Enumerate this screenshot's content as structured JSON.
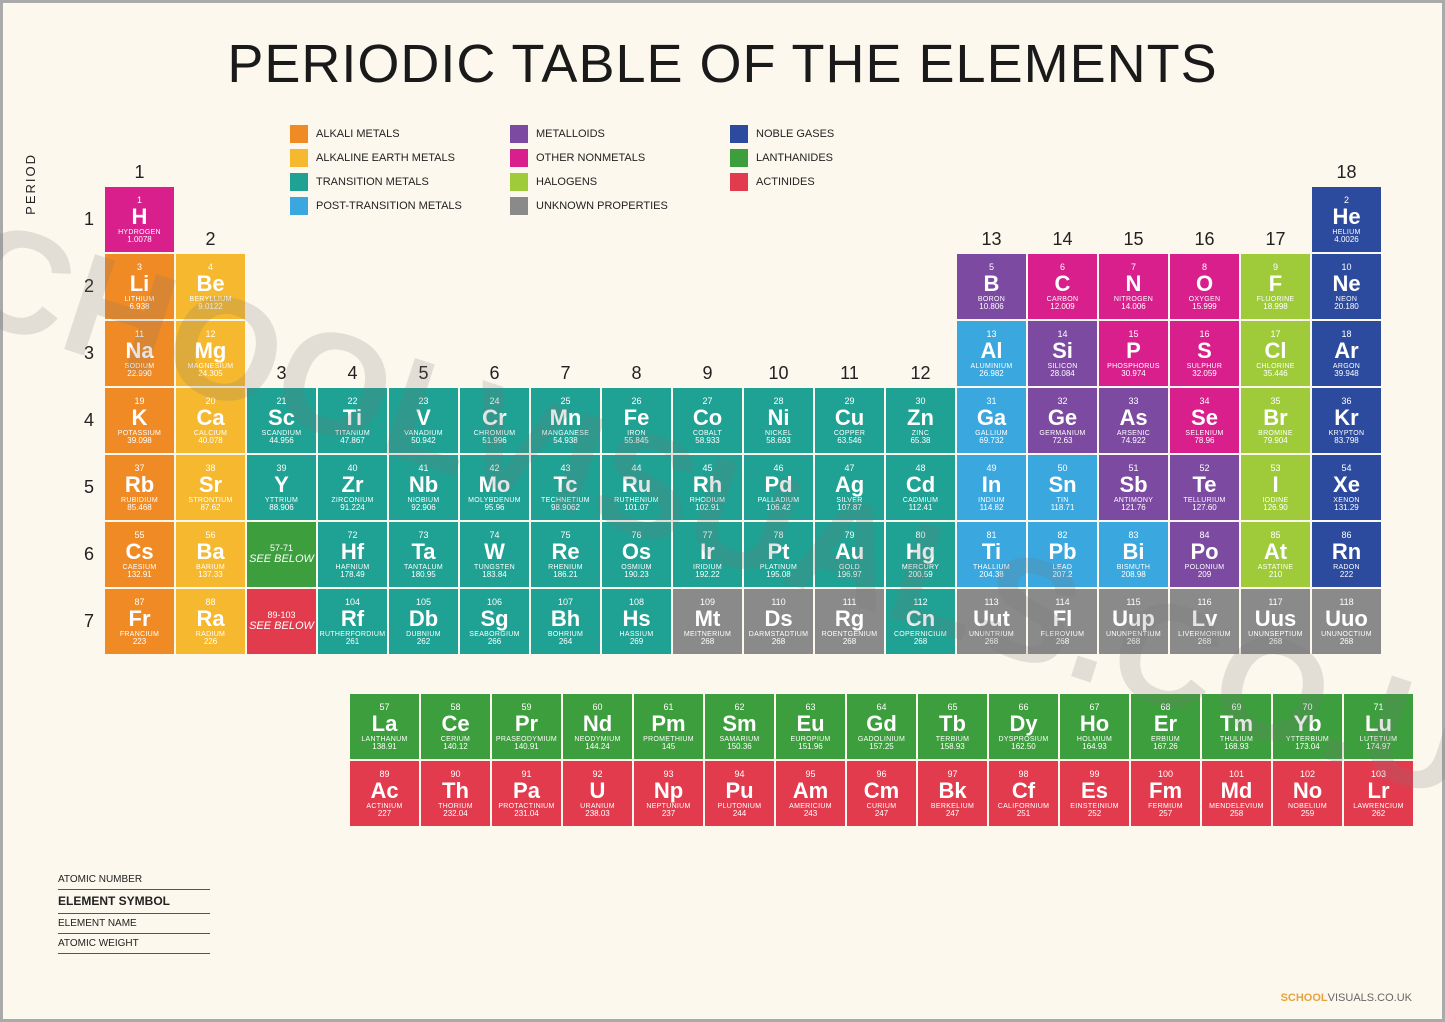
{
  "title": "PERIODIC TABLE OF THE ELEMENTS",
  "watermark": "SCHOOLVISUALS.CO.UK",
  "period_axis_label": "PERIOD",
  "footer": {
    "brand1": "SCHOOL",
    "brand2": "VISUALS.CO.UK"
  },
  "key_labels": [
    "ATOMIC NUMBER",
    "ELEMENT SYMBOL",
    "ELEMENT NAME",
    "ATOMIC WEIGHT"
  ],
  "see_below_1": {
    "range": "57-71",
    "text": "SEE BELOW"
  },
  "see_below_2": {
    "range": "89-103",
    "text": "SEE BELOW"
  },
  "categories": {
    "alkali": {
      "label": "ALKALI METALS",
      "color": "#f08a24"
    },
    "alkaline": {
      "label": "ALKALINE EARTH METALS",
      "color": "#f5b82e"
    },
    "transition": {
      "label": "TRANSITION METALS",
      "color": "#1fa193"
    },
    "post": {
      "label": "POST-TRANSITION METALS",
      "color": "#3aa7df"
    },
    "metalloid": {
      "label": "METALLOIDS",
      "color": "#7c4aa0"
    },
    "nonmetal": {
      "label": "OTHER NONMETALS",
      "color": "#d81f8c"
    },
    "halogen": {
      "label": "HALOGENS",
      "color": "#9fcb3b"
    },
    "unknown": {
      "label": "UNKNOWN PROPERTIES",
      "color": "#8a8a8a"
    },
    "noble": {
      "label": "NOBLE GASES",
      "color": "#2c4a9e"
    },
    "lanthanide": {
      "label": "LANTHANIDES",
      "color": "#3c9e3c"
    },
    "actinide": {
      "label": "ACTINIDES",
      "color": "#e33b4e"
    }
  },
  "legend_order": [
    "alkali",
    "metalloid",
    "noble",
    "alkaline",
    "nonmetal",
    "lanthanide",
    "transition",
    "halogen",
    "actinide",
    "post",
    "unknown"
  ],
  "groups": [
    1,
    2,
    3,
    4,
    5,
    6,
    7,
    8,
    9,
    10,
    11,
    12,
    13,
    14,
    15,
    16,
    17,
    18
  ],
  "group_row_positions": {
    "1": 1,
    "2": 2,
    "3": 4,
    "4": 4,
    "5": 4,
    "6": 4,
    "7": 4,
    "8": 4,
    "9": 4,
    "10": 4,
    "11": 4,
    "12": 4,
    "13": 2,
    "14": 2,
    "15": 2,
    "16": 2,
    "17": 2,
    "18": 1
  },
  "periods": [
    1,
    2,
    3,
    4,
    5,
    6,
    7
  ],
  "elements": [
    {
      "n": 1,
      "s": "H",
      "name": "HYDROGEN",
      "w": "1.0078",
      "p": 1,
      "g": 1,
      "c": "nonmetal"
    },
    {
      "n": 2,
      "s": "He",
      "name": "HELIUM",
      "w": "4.0026",
      "p": 1,
      "g": 18,
      "c": "noble"
    },
    {
      "n": 3,
      "s": "Li",
      "name": "LITHIUM",
      "w": "6.938",
      "p": 2,
      "g": 1,
      "c": "alkali"
    },
    {
      "n": 4,
      "s": "Be",
      "name": "BERYLLIUM",
      "w": "9.0122",
      "p": 2,
      "g": 2,
      "c": "alkaline"
    },
    {
      "n": 5,
      "s": "B",
      "name": "BORON",
      "w": "10.806",
      "p": 2,
      "g": 13,
      "c": "metalloid"
    },
    {
      "n": 6,
      "s": "C",
      "name": "CARBON",
      "w": "12.009",
      "p": 2,
      "g": 14,
      "c": "nonmetal"
    },
    {
      "n": 7,
      "s": "N",
      "name": "NITROGEN",
      "w": "14.006",
      "p": 2,
      "g": 15,
      "c": "nonmetal"
    },
    {
      "n": 8,
      "s": "O",
      "name": "OXYGEN",
      "w": "15.999",
      "p": 2,
      "g": 16,
      "c": "nonmetal"
    },
    {
      "n": 9,
      "s": "F",
      "name": "FLUORINE",
      "w": "18.998",
      "p": 2,
      "g": 17,
      "c": "halogen"
    },
    {
      "n": 10,
      "s": "Ne",
      "name": "NEON",
      "w": "20.180",
      "p": 2,
      "g": 18,
      "c": "noble"
    },
    {
      "n": 11,
      "s": "Na",
      "name": "SODIUM",
      "w": "22.990",
      "p": 3,
      "g": 1,
      "c": "alkali"
    },
    {
      "n": 12,
      "s": "Mg",
      "name": "MAGNESIUM",
      "w": "24.305",
      "p": 3,
      "g": 2,
      "c": "alkaline"
    },
    {
      "n": 13,
      "s": "Al",
      "name": "ALUMINIUM",
      "w": "26.982",
      "p": 3,
      "g": 13,
      "c": "post"
    },
    {
      "n": 14,
      "s": "Si",
      "name": "SILICON",
      "w": "28.084",
      "p": 3,
      "g": 14,
      "c": "metalloid"
    },
    {
      "n": 15,
      "s": "P",
      "name": "PHOSPHORUS",
      "w": "30.974",
      "p": 3,
      "g": 15,
      "c": "nonmetal"
    },
    {
      "n": 16,
      "s": "S",
      "name": "SULPHUR",
      "w": "32.059",
      "p": 3,
      "g": 16,
      "c": "nonmetal"
    },
    {
      "n": 17,
      "s": "Cl",
      "name": "CHLORINE",
      "w": "35.446",
      "p": 3,
      "g": 17,
      "c": "halogen"
    },
    {
      "n": 18,
      "s": "Ar",
      "name": "ARGON",
      "w": "39.948",
      "p": 3,
      "g": 18,
      "c": "noble"
    },
    {
      "n": 19,
      "s": "K",
      "name": "POTASSIUM",
      "w": "39.098",
      "p": 4,
      "g": 1,
      "c": "alkali"
    },
    {
      "n": 20,
      "s": "Ca",
      "name": "CALCIUM",
      "w": "40.078",
      "p": 4,
      "g": 2,
      "c": "alkaline"
    },
    {
      "n": 21,
      "s": "Sc",
      "name": "SCANDIUM",
      "w": "44.956",
      "p": 4,
      "g": 3,
      "c": "transition"
    },
    {
      "n": 22,
      "s": "Ti",
      "name": "TITANIUM",
      "w": "47.867",
      "p": 4,
      "g": 4,
      "c": "transition"
    },
    {
      "n": 23,
      "s": "V",
      "name": "VANADIUM",
      "w": "50.942",
      "p": 4,
      "g": 5,
      "c": "transition"
    },
    {
      "n": 24,
      "s": "Cr",
      "name": "CHROMIUM",
      "w": "51.996",
      "p": 4,
      "g": 6,
      "c": "transition"
    },
    {
      "n": 25,
      "s": "Mn",
      "name": "MANGANESE",
      "w": "54.938",
      "p": 4,
      "g": 7,
      "c": "transition"
    },
    {
      "n": 26,
      "s": "Fe",
      "name": "IRON",
      "w": "55.845",
      "p": 4,
      "g": 8,
      "c": "transition"
    },
    {
      "n": 27,
      "s": "Co",
      "name": "COBALT",
      "w": "58.933",
      "p": 4,
      "g": 9,
      "c": "transition"
    },
    {
      "n": 28,
      "s": "Ni",
      "name": "NICKEL",
      "w": "58.693",
      "p": 4,
      "g": 10,
      "c": "transition"
    },
    {
      "n": 29,
      "s": "Cu",
      "name": "COPPER",
      "w": "63.546",
      "p": 4,
      "g": 11,
      "c": "transition"
    },
    {
      "n": 30,
      "s": "Zn",
      "name": "ZINC",
      "w": "65.38",
      "p": 4,
      "g": 12,
      "c": "transition"
    },
    {
      "n": 31,
      "s": "Ga",
      "name": "GALLIUM",
      "w": "69.732",
      "p": 4,
      "g": 13,
      "c": "post"
    },
    {
      "n": 32,
      "s": "Ge",
      "name": "GERMANIUM",
      "w": "72.63",
      "p": 4,
      "g": 14,
      "c": "metalloid"
    },
    {
      "n": 33,
      "s": "As",
      "name": "ARSENIC",
      "w": "74.922",
      "p": 4,
      "g": 15,
      "c": "metalloid"
    },
    {
      "n": 34,
      "s": "Se",
      "name": "SELENIUM",
      "w": "78.96",
      "p": 4,
      "g": 16,
      "c": "nonmetal"
    },
    {
      "n": 35,
      "s": "Br",
      "name": "BROMINE",
      "w": "79.904",
      "p": 4,
      "g": 17,
      "c": "halogen"
    },
    {
      "n": 36,
      "s": "Kr",
      "name": "KRYPTON",
      "w": "83.798",
      "p": 4,
      "g": 18,
      "c": "noble"
    },
    {
      "n": 37,
      "s": "Rb",
      "name": "RUBIDIUM",
      "w": "85.468",
      "p": 5,
      "g": 1,
      "c": "alkali"
    },
    {
      "n": 38,
      "s": "Sr",
      "name": "STRONTIUM",
      "w": "87.62",
      "p": 5,
      "g": 2,
      "c": "alkaline"
    },
    {
      "n": 39,
      "s": "Y",
      "name": "YTTRIUM",
      "w": "88.906",
      "p": 5,
      "g": 3,
      "c": "transition"
    },
    {
      "n": 40,
      "s": "Zr",
      "name": "ZIRCONIUM",
      "w": "91.224",
      "p": 5,
      "g": 4,
      "c": "transition"
    },
    {
      "n": 41,
      "s": "Nb",
      "name": "NIOBIUM",
      "w": "92.906",
      "p": 5,
      "g": 5,
      "c": "transition"
    },
    {
      "n": 42,
      "s": "Mo",
      "name": "MOLYBDENUM",
      "w": "95.96",
      "p": 5,
      "g": 6,
      "c": "transition"
    },
    {
      "n": 43,
      "s": "Tc",
      "name": "TECHNETIUM",
      "w": "98.9062",
      "p": 5,
      "g": 7,
      "c": "transition"
    },
    {
      "n": 44,
      "s": "Ru",
      "name": "RUTHENIUM",
      "w": "101.07",
      "p": 5,
      "g": 8,
      "c": "transition"
    },
    {
      "n": 45,
      "s": "Rh",
      "name": "RHODIUM",
      "w": "102.91",
      "p": 5,
      "g": 9,
      "c": "transition"
    },
    {
      "n": 46,
      "s": "Pd",
      "name": "PALLADIUM",
      "w": "106.42",
      "p": 5,
      "g": 10,
      "c": "transition"
    },
    {
      "n": 47,
      "s": "Ag",
      "name": "SILVER",
      "w": "107.87",
      "p": 5,
      "g": 11,
      "c": "transition"
    },
    {
      "n": 48,
      "s": "Cd",
      "name": "CADMIUM",
      "w": "112.41",
      "p": 5,
      "g": 12,
      "c": "transition"
    },
    {
      "n": 49,
      "s": "In",
      "name": "INDIUM",
      "w": "114.82",
      "p": 5,
      "g": 13,
      "c": "post"
    },
    {
      "n": 50,
      "s": "Sn",
      "name": "TIN",
      "w": "118.71",
      "p": 5,
      "g": 14,
      "c": "post"
    },
    {
      "n": 51,
      "s": "Sb",
      "name": "ANTIMONY",
      "w": "121.76",
      "p": 5,
      "g": 15,
      "c": "metalloid"
    },
    {
      "n": 52,
      "s": "Te",
      "name": "TELLURIUM",
      "w": "127.60",
      "p": 5,
      "g": 16,
      "c": "metalloid"
    },
    {
      "n": 53,
      "s": "I",
      "name": "IODINE",
      "w": "126.90",
      "p": 5,
      "g": 17,
      "c": "halogen"
    },
    {
      "n": 54,
      "s": "Xe",
      "name": "XENON",
      "w": "131.29",
      "p": 5,
      "g": 18,
      "c": "noble"
    },
    {
      "n": 55,
      "s": "Cs",
      "name": "CAESIUM",
      "w": "132.91",
      "p": 6,
      "g": 1,
      "c": "alkali"
    },
    {
      "n": 56,
      "s": "Ba",
      "name": "BARIUM",
      "w": "137.33",
      "p": 6,
      "g": 2,
      "c": "alkaline"
    },
    {
      "n": 72,
      "s": "Hf",
      "name": "HAFNIUM",
      "w": "178.49",
      "p": 6,
      "g": 4,
      "c": "transition"
    },
    {
      "n": 73,
      "s": "Ta",
      "name": "TANTALUM",
      "w": "180.95",
      "p": 6,
      "g": 5,
      "c": "transition"
    },
    {
      "n": 74,
      "s": "W",
      "name": "TUNGSTEN",
      "w": "183.84",
      "p": 6,
      "g": 6,
      "c": "transition"
    },
    {
      "n": 75,
      "s": "Re",
      "name": "RHENIUM",
      "w": "186.21",
      "p": 6,
      "g": 7,
      "c": "transition"
    },
    {
      "n": 76,
      "s": "Os",
      "name": "OSMIUM",
      "w": "190.23",
      "p": 6,
      "g": 8,
      "c": "transition"
    },
    {
      "n": 77,
      "s": "Ir",
      "name": "IRIDIUM",
      "w": "192.22",
      "p": 6,
      "g": 9,
      "c": "transition"
    },
    {
      "n": 78,
      "s": "Pt",
      "name": "PLATINUM",
      "w": "195.08",
      "p": 6,
      "g": 10,
      "c": "transition"
    },
    {
      "n": 79,
      "s": "Au",
      "name": "GOLD",
      "w": "196.97",
      "p": 6,
      "g": 11,
      "c": "transition"
    },
    {
      "n": 80,
      "s": "Hg",
      "name": "MERCURY",
      "w": "200.59",
      "p": 6,
      "g": 12,
      "c": "transition"
    },
    {
      "n": 81,
      "s": "Ti",
      "name": "THALLIUM",
      "w": "204.38",
      "p": 6,
      "g": 13,
      "c": "post"
    },
    {
      "n": 82,
      "s": "Pb",
      "name": "LEAD",
      "w": "207.2",
      "p": 6,
      "g": 14,
      "c": "post"
    },
    {
      "n": 83,
      "s": "Bi",
      "name": "BISMUTH",
      "w": "208.98",
      "p": 6,
      "g": 15,
      "c": "post"
    },
    {
      "n": 84,
      "s": "Po",
      "name": "POLONIUM",
      "w": "209",
      "p": 6,
      "g": 16,
      "c": "metalloid"
    },
    {
      "n": 85,
      "s": "At",
      "name": "ASTATINE",
      "w": "210",
      "p": 6,
      "g": 17,
      "c": "halogen"
    },
    {
      "n": 86,
      "s": "Rn",
      "name": "RADON",
      "w": "222",
      "p": 6,
      "g": 18,
      "c": "noble"
    },
    {
      "n": 87,
      "s": "Fr",
      "name": "FRANCIUM",
      "w": "223",
      "p": 7,
      "g": 1,
      "c": "alkali"
    },
    {
      "n": 88,
      "s": "Ra",
      "name": "RADIUM",
      "w": "226",
      "p": 7,
      "g": 2,
      "c": "alkaline"
    },
    {
      "n": 104,
      "s": "Rf",
      "name": "RUTHERFORDIUM",
      "w": "261",
      "p": 7,
      "g": 4,
      "c": "transition"
    },
    {
      "n": 105,
      "s": "Db",
      "name": "DUBNIUM",
      "w": "262",
      "p": 7,
      "g": 5,
      "c": "transition"
    },
    {
      "n": 106,
      "s": "Sg",
      "name": "SEABORGIUM",
      "w": "266",
      "p": 7,
      "g": 6,
      "c": "transition"
    },
    {
      "n": 107,
      "s": "Bh",
      "name": "BOHRIUM",
      "w": "264",
      "p": 7,
      "g": 7,
      "c": "transition"
    },
    {
      "n": 108,
      "s": "Hs",
      "name": "HASSIUM",
      "w": "269",
      "p": 7,
      "g": 8,
      "c": "transition"
    },
    {
      "n": 109,
      "s": "Mt",
      "name": "MEITNERIUM",
      "w": "268",
      "p": 7,
      "g": 9,
      "c": "unknown"
    },
    {
      "n": 110,
      "s": "Ds",
      "name": "DARMSTADTIUM",
      "w": "268",
      "p": 7,
      "g": 10,
      "c": "unknown"
    },
    {
      "n": 111,
      "s": "Rg",
      "name": "ROENTGENIUM",
      "w": "268",
      "p": 7,
      "g": 11,
      "c": "unknown"
    },
    {
      "n": 112,
      "s": "Cn",
      "name": "COPERNICIUM",
      "w": "268",
      "p": 7,
      "g": 12,
      "c": "transition"
    },
    {
      "n": 113,
      "s": "Uut",
      "name": "UNUNTRIUM",
      "w": "268",
      "p": 7,
      "g": 13,
      "c": "unknown"
    },
    {
      "n": 114,
      "s": "Fl",
      "name": "FLEROVIUM",
      "w": "268",
      "p": 7,
      "g": 14,
      "c": "unknown"
    },
    {
      "n": 115,
      "s": "Uup",
      "name": "UNUNPENTIUM",
      "w": "268",
      "p": 7,
      "g": 15,
      "c": "unknown"
    },
    {
      "n": 116,
      "s": "Lv",
      "name": "LIVERMORIUM",
      "w": "268",
      "p": 7,
      "g": 16,
      "c": "unknown"
    },
    {
      "n": 117,
      "s": "Uus",
      "name": "UNUNSEPTIUM",
      "w": "268",
      "p": 7,
      "g": 17,
      "c": "unknown"
    },
    {
      "n": 118,
      "s": "Uuo",
      "name": "UNUNOCTIUM",
      "w": "268",
      "p": 7,
      "g": 18,
      "c": "unknown"
    }
  ],
  "lanthanides": [
    {
      "n": 57,
      "s": "La",
      "name": "LANTHANUM",
      "w": "138.91",
      "c": "lanthanide"
    },
    {
      "n": 58,
      "s": "Ce",
      "name": "CERIUM",
      "w": "140.12",
      "c": "lanthanide"
    },
    {
      "n": 59,
      "s": "Pr",
      "name": "PRASEODYMIUM",
      "w": "140.91",
      "c": "lanthanide"
    },
    {
      "n": 60,
      "s": "Nd",
      "name": "NEODYMIUM",
      "w": "144.24",
      "c": "lanthanide"
    },
    {
      "n": 61,
      "s": "Pm",
      "name": "PROMETHIUM",
      "w": "145",
      "c": "lanthanide"
    },
    {
      "n": 62,
      "s": "Sm",
      "name": "SAMARIUM",
      "w": "150.36",
      "c": "lanthanide"
    },
    {
      "n": 63,
      "s": "Eu",
      "name": "EUROPIUM",
      "w": "151.96",
      "c": "lanthanide"
    },
    {
      "n": 64,
      "s": "Gd",
      "name": "GADOLINIUM",
      "w": "157.25",
      "c": "lanthanide"
    },
    {
      "n": 65,
      "s": "Tb",
      "name": "TERBIUM",
      "w": "158.93",
      "c": "lanthanide"
    },
    {
      "n": 66,
      "s": "Dy",
      "name": "DYSPROSIUM",
      "w": "162.50",
      "c": "lanthanide"
    },
    {
      "n": 67,
      "s": "Ho",
      "name": "HOLMIUM",
      "w": "164.93",
      "c": "lanthanide"
    },
    {
      "n": 68,
      "s": "Er",
      "name": "ERBIUM",
      "w": "167.26",
      "c": "lanthanide"
    },
    {
      "n": 69,
      "s": "Tm",
      "name": "THULIUM",
      "w": "168.93",
      "c": "lanthanide"
    },
    {
      "n": 70,
      "s": "Yb",
      "name": "YTTERBIUM",
      "w": "173.04",
      "c": "lanthanide"
    },
    {
      "n": 71,
      "s": "Lu",
      "name": "LUTETIUM",
      "w": "174.97",
      "c": "lanthanide"
    }
  ],
  "actinides": [
    {
      "n": 89,
      "s": "Ac",
      "name": "ACTINIUM",
      "w": "227",
      "c": "actinide"
    },
    {
      "n": 90,
      "s": "Th",
      "name": "THORIUM",
      "w": "232.04",
      "c": "actinide"
    },
    {
      "n": 91,
      "s": "Pa",
      "name": "PROTACTINIUM",
      "w": "231.04",
      "c": "actinide"
    },
    {
      "n": 92,
      "s": "U",
      "name": "URANIUM",
      "w": "238.03",
      "c": "actinide"
    },
    {
      "n": 93,
      "s": "Np",
      "name": "NEPTUNIUM",
      "w": "237",
      "c": "actinide"
    },
    {
      "n": 94,
      "s": "Pu",
      "name": "PLUTONIUM",
      "w": "244",
      "c": "actinide"
    },
    {
      "n": 95,
      "s": "Am",
      "name": "AMERICIUM",
      "w": "243",
      "c": "actinide"
    },
    {
      "n": 96,
      "s": "Cm",
      "name": "CURIUM",
      "w": "247",
      "c": "actinide"
    },
    {
      "n": 97,
      "s": "Bk",
      "name": "BERKELIUM",
      "w": "247",
      "c": "actinide"
    },
    {
      "n": 98,
      "s": "Cf",
      "name": "CALIFORNIUM",
      "w": "251",
      "c": "actinide"
    },
    {
      "n": 99,
      "s": "Es",
      "name": "EINSTEINIUM",
      "w": "252",
      "c": "actinide"
    },
    {
      "n": 100,
      "s": "Fm",
      "name": "FERMIUM",
      "w": "257",
      "c": "actinide"
    },
    {
      "n": 101,
      "s": "Md",
      "name": "MENDELEVIUM",
      "w": "258",
      "c": "actinide"
    },
    {
      "n": 102,
      "s": "No",
      "name": "NOBELIUM",
      "w": "259",
      "c": "actinide"
    },
    {
      "n": 103,
      "s": "Lr",
      "name": "LAWRENCIUM",
      "w": "262",
      "c": "actinide"
    }
  ]
}
